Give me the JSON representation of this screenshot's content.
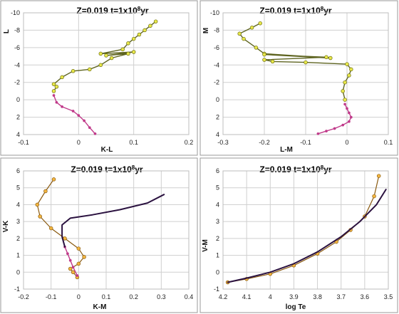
{
  "figure": {
    "palette": {
      "yellow_fill": "#e8e84a",
      "yellow_edge": "#6b6b10",
      "orange_fill": "#f3b640",
      "orange_edge": "#8a5a10",
      "magenta": "#c03a8a",
      "dark_purple": "#2b1240",
      "olive_line": "#5e6420",
      "grid": "#cfcfcf"
    }
  },
  "chart_data": [
    {
      "id": "kl",
      "type": "scatter",
      "title": "Z=0.019   t=1x10⁸yr",
      "title_parts": {
        "main": "Z=0.019   t=1x10",
        "sup": "8",
        "tail": "yr"
      },
      "xlabel": "K-L",
      "ylabel": "L",
      "xlim": [
        -0.1,
        0.2
      ],
      "ylim": [
        -10,
        4
      ],
      "y_inverted": true,
      "xticks": [
        "-0.1",
        "0",
        "0.1",
        "0.2"
      ],
      "xtick_values": [
        -0.1,
        0,
        0.1,
        0.2
      ],
      "yticks": [
        "-10",
        "-8",
        "-6",
        "-4",
        "-2",
        "0",
        "2",
        "4"
      ],
      "ytick_values": [
        -10,
        -8,
        -6,
        -4,
        -2,
        0,
        2,
        4
      ],
      "grid": true,
      "series": [
        {
          "style": "yellow",
          "x": [
            0.14,
            0.13,
            0.12,
            0.11,
            0.1,
            0.09,
            0.08,
            0.04,
            0.1,
            0.05,
            0.09,
            0.06,
            0.04,
            0.02,
            -0.01,
            -0.03,
            -0.045,
            -0.04,
            -0.045
          ],
          "y": [
            -9,
            -8.5,
            -8,
            -7.5,
            -7,
            -6.5,
            -5.8,
            -5.3,
            -5.5,
            -5.1,
            -5.3,
            -4.8,
            -4,
            -3.5,
            -3.3,
            -2.6,
            -1.8,
            -1.5,
            -1
          ]
        },
        {
          "style": "magenta",
          "x": [
            -0.045,
            -0.04,
            -0.03,
            -0.01,
            0,
            0.01,
            0.02,
            0.03
          ],
          "y": [
            -0.5,
            0.3,
            0.8,
            1.3,
            1.8,
            2.4,
            3.2,
            3.9
          ]
        }
      ]
    },
    {
      "id": "lm",
      "type": "scatter",
      "title": "Z=0.019   t=1x10⁸yr",
      "title_parts": {
        "main": "Z=0.019   t=1x10",
        "sup": "8",
        "tail": "yr"
      },
      "xlabel": "L-M",
      "ylabel": "M",
      "xlim": [
        -0.3,
        0.1
      ],
      "ylim": [
        -10,
        4
      ],
      "y_inverted": true,
      "xticks": [
        "-0.3",
        "-0.2",
        "-0.1",
        "0",
        "0.1"
      ],
      "xtick_values": [
        -0.3,
        -0.2,
        -0.1,
        0,
        0.1
      ],
      "yticks": [
        "-10",
        "-8",
        "-6",
        "-4",
        "-2",
        "0",
        "2",
        "4"
      ],
      "ytick_values": [
        -10,
        -8,
        -6,
        -4,
        -2,
        0,
        2,
        4
      ],
      "grid": true,
      "series": [
        {
          "style": "yellow",
          "x": [
            -0.21,
            -0.23,
            -0.26,
            -0.25,
            -0.22,
            -0.2,
            -0.04,
            -0.2,
            -0.05,
            -0.2,
            -0.18,
            -0.1,
            0.0,
            0.01,
            0.005,
            -0.005,
            -0.01,
            -0.005
          ],
          "y": [
            -8.8,
            -8.3,
            -7.6,
            -7,
            -6,
            -5.3,
            -4.8,
            -5.2,
            -4.9,
            -4.6,
            -4.4,
            -4.3,
            -4.1,
            -3.5,
            -2.8,
            -2,
            -1,
            0
          ]
        },
        {
          "style": "magenta",
          "x": [
            -0.005,
            0.0,
            0.005,
            0.01,
            0.005,
            -0.01,
            -0.03,
            -0.05,
            -0.07
          ],
          "y": [
            0.5,
            1,
            1.5,
            2,
            2.5,
            2.9,
            3.3,
            3.6,
            3.9
          ]
        }
      ]
    },
    {
      "id": "km",
      "type": "line",
      "title": "Z=0.019   t=1x10⁸yr",
      "title_parts": {
        "main": "Z=0.019   t=1x10",
        "sup": "8",
        "tail": "yr"
      },
      "xlabel": "K-M",
      "ylabel": "V-K",
      "xlim": [
        -0.2,
        0.4
      ],
      "ylim": [
        -1,
        6
      ],
      "y_inverted": false,
      "xticks": [
        "-0.2",
        "-0.1",
        "0",
        "0.1",
        "0.2",
        "0.3",
        "0.4"
      ],
      "xtick_values": [
        -0.2,
        -0.1,
        0,
        0.1,
        0.2,
        0.3,
        0.4
      ],
      "yticks": [
        "-1",
        "0",
        "1",
        "2",
        "3",
        "4",
        "5",
        "6"
      ],
      "ytick_values": [
        -1,
        0,
        1,
        2,
        3,
        4,
        5,
        6
      ],
      "grid": true,
      "series": [
        {
          "style": "orange",
          "x": [
            -0.09,
            -0.12,
            -0.15,
            -0.14,
            -0.1,
            -0.05,
            0,
            0.02,
            0.0,
            -0.03,
            -0.02,
            -0.005
          ],
          "y": [
            5.5,
            4.8,
            4.0,
            3.3,
            2.6,
            2.0,
            1.4,
            0.9,
            0.5,
            0.2,
            0.0,
            -0.3
          ]
        },
        {
          "style": "magenta",
          "x": [
            -0.005,
            -0.02,
            -0.03,
            -0.04,
            -0.05
          ],
          "y": [
            -0.2,
            0.3,
            0.7,
            1.1,
            1.5
          ]
        },
        {
          "style": "dark",
          "x": [
            -0.05,
            -0.06,
            -0.06,
            -0.03,
            0.05,
            0.15,
            0.25,
            0.31
          ],
          "y": [
            1.5,
            2.1,
            2.8,
            3.2,
            3.4,
            3.7,
            4.1,
            4.6
          ]
        }
      ]
    },
    {
      "id": "logte",
      "type": "line",
      "title": "Z=0.019   t=1x10⁸yr",
      "title_parts": {
        "main": "Z=0.019   t=1x10",
        "sup": "8",
        "tail": "yr"
      },
      "xlabel": "log Te",
      "ylabel": "V-M",
      "xlim": [
        4.2,
        3.5
      ],
      "ylim": [
        -1,
        6
      ],
      "y_inverted": false,
      "xticks": [
        "4.2",
        "4.1",
        "4",
        "3.9",
        "3.8",
        "3.7",
        "3.6",
        "3.5"
      ],
      "xtick_values": [
        4.2,
        4.1,
        4,
        3.9,
        3.8,
        3.7,
        3.6,
        3.5
      ],
      "yticks": [
        "-1",
        "0",
        "1",
        "2",
        "3",
        "4",
        "5",
        "6"
      ],
      "ytick_values": [
        -1,
        0,
        1,
        2,
        3,
        4,
        5,
        6
      ],
      "grid": true,
      "series": [
        {
          "style": "orange",
          "x": [
            4.18,
            4.1,
            4.0,
            3.9,
            3.8,
            3.72,
            3.66,
            3.6,
            3.56,
            3.54
          ],
          "y": [
            -0.6,
            -0.4,
            -0.1,
            0.4,
            1.1,
            1.8,
            2.5,
            3.3,
            4.5,
            5.7
          ]
        },
        {
          "style": "dark",
          "x": [
            4.18,
            4.1,
            4.0,
            3.9,
            3.8,
            3.7,
            3.62,
            3.55,
            3.51
          ],
          "y": [
            -0.6,
            -0.35,
            0.0,
            0.5,
            1.2,
            2.1,
            3.0,
            4.0,
            4.9
          ]
        }
      ]
    }
  ]
}
